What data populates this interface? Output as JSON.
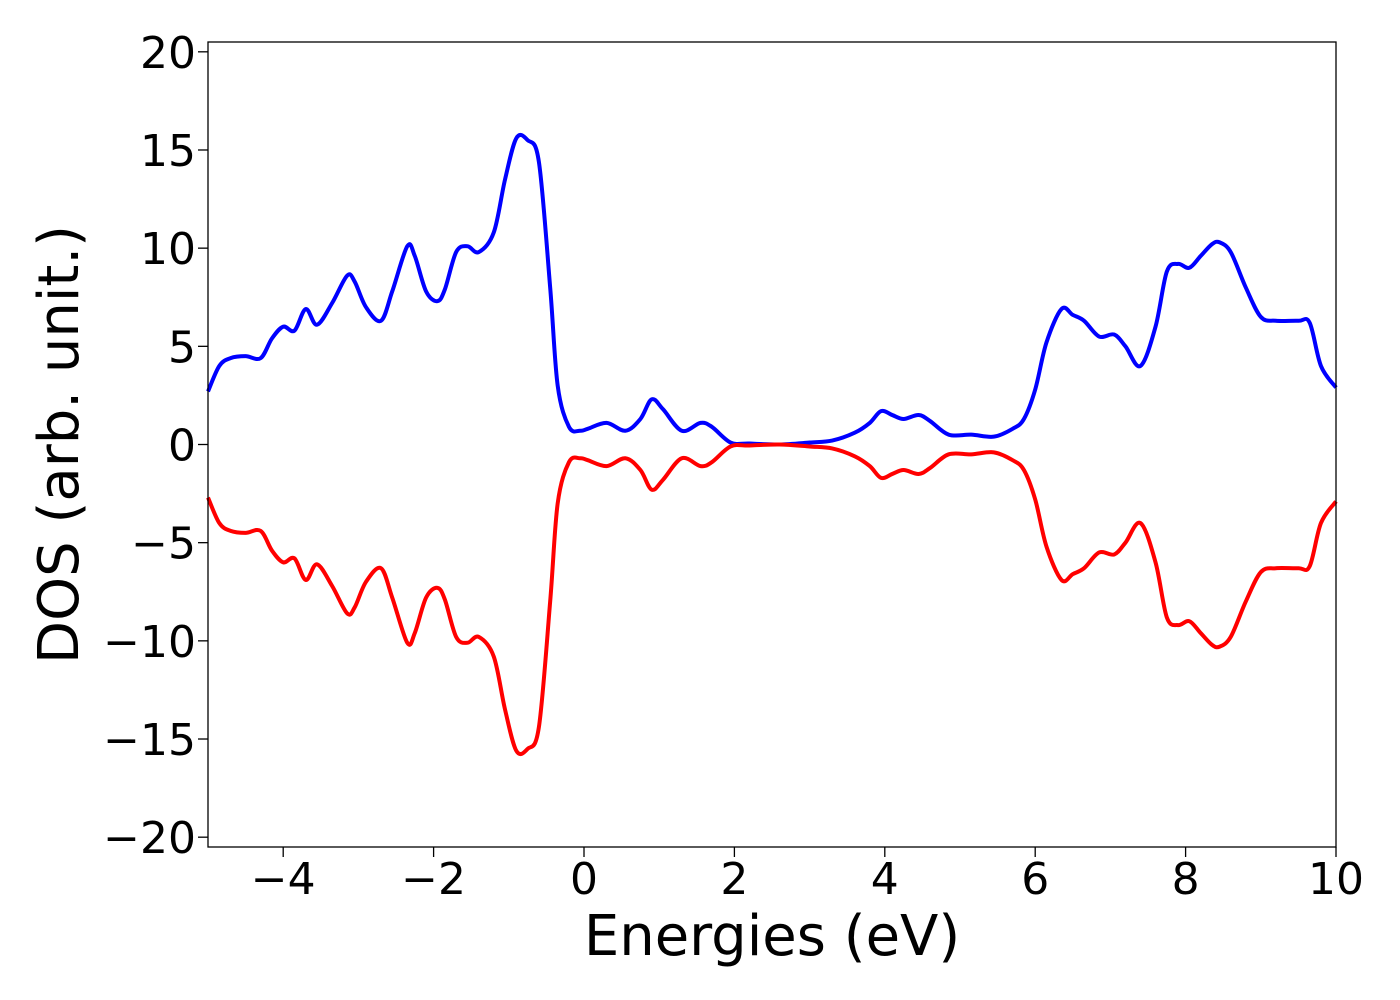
{
  "chart_data": {
    "type": "line",
    "title": "",
    "xlabel": "Energies (eV)",
    "ylabel": "DOS (arb. unit.)",
    "xlim": [
      -5,
      10
    ],
    "ylim": [
      -20.5,
      20.5
    ],
    "grid": false,
    "legend": "none",
    "x_ticks": [
      -4,
      -2,
      0,
      2,
      4,
      6,
      8,
      10
    ],
    "x_tick_labels": [
      "−4",
      "−2",
      "0",
      "2",
      "4",
      "6",
      "8",
      "10"
    ],
    "y_ticks": [
      -20,
      -15,
      -10,
      -5,
      0,
      5,
      10,
      15,
      20
    ],
    "y_tick_labels": [
      "−20",
      "−15",
      "−10",
      "−5",
      "0",
      "5",
      "10",
      "15",
      "20"
    ],
    "series": [
      {
        "color": "#0000ff",
        "x": [
          -5.0,
          -4.85,
          -4.7,
          -4.5,
          -4.3,
          -4.15,
          -4.0,
          -3.85,
          -3.7,
          -3.55,
          -3.35,
          -3.15,
          -3.05,
          -2.9,
          -2.7,
          -2.55,
          -2.35,
          -2.25,
          -2.1,
          -1.95,
          -1.85,
          -1.7,
          -1.55,
          -1.4,
          -1.2,
          -1.05,
          -0.9,
          -0.75,
          -0.6,
          -0.45,
          -0.35,
          -0.2,
          -0.05,
          0.05,
          0.3,
          0.55,
          0.75,
          0.9,
          1.05,
          1.3,
          1.55,
          1.7,
          1.95,
          2.2,
          2.6,
          3.0,
          3.3,
          3.6,
          3.8,
          3.95,
          4.1,
          4.25,
          4.45,
          4.6,
          4.85,
          5.15,
          5.45,
          5.7,
          5.85,
          6.0,
          6.15,
          6.35,
          6.5,
          6.65,
          6.85,
          7.05,
          7.2,
          7.4,
          7.6,
          7.75,
          7.9,
          8.05,
          8.2,
          8.35,
          8.45,
          8.6,
          8.8,
          9.0,
          9.2,
          9.5,
          9.65,
          9.8,
          10.0
        ],
        "y": [
          2.7,
          4.0,
          4.4,
          4.5,
          4.4,
          5.4,
          6.0,
          5.8,
          6.9,
          6.1,
          7.2,
          8.6,
          8.3,
          7.0,
          6.3,
          7.8,
          10.1,
          9.6,
          7.8,
          7.3,
          7.9,
          9.8,
          10.1,
          9.8,
          10.8,
          13.5,
          15.6,
          15.5,
          14.4,
          8.0,
          3.0,
          0.9,
          0.7,
          0.8,
          1.1,
          0.7,
          1.3,
          2.3,
          1.8,
          0.7,
          1.1,
          0.9,
          0.1,
          0.05,
          0.0,
          0.1,
          0.2,
          0.6,
          1.1,
          1.7,
          1.5,
          1.3,
          1.5,
          1.2,
          0.5,
          0.5,
          0.4,
          0.8,
          1.3,
          2.8,
          5.2,
          6.9,
          6.6,
          6.3,
          5.5,
          5.6,
          5.0,
          4.0,
          6.0,
          8.8,
          9.2,
          9.0,
          9.6,
          10.2,
          10.3,
          9.8,
          8.0,
          6.5,
          6.3,
          6.3,
          6.2,
          4.0,
          2.9
        ]
      },
      {
        "color": "#ff0000",
        "x": [
          -5.0,
          -4.85,
          -4.7,
          -4.5,
          -4.3,
          -4.15,
          -4.0,
          -3.85,
          -3.7,
          -3.55,
          -3.35,
          -3.15,
          -3.05,
          -2.9,
          -2.7,
          -2.55,
          -2.35,
          -2.25,
          -2.1,
          -1.95,
          -1.85,
          -1.7,
          -1.55,
          -1.4,
          -1.2,
          -1.05,
          -0.9,
          -0.75,
          -0.6,
          -0.45,
          -0.35,
          -0.2,
          -0.05,
          0.05,
          0.3,
          0.55,
          0.75,
          0.9,
          1.05,
          1.3,
          1.55,
          1.7,
          1.95,
          2.2,
          2.6,
          3.0,
          3.3,
          3.6,
          3.8,
          3.95,
          4.1,
          4.25,
          4.45,
          4.6,
          4.85,
          5.15,
          5.45,
          5.7,
          5.85,
          6.0,
          6.15,
          6.35,
          6.5,
          6.65,
          6.85,
          7.05,
          7.2,
          7.4,
          7.6,
          7.75,
          7.9,
          8.05,
          8.2,
          8.35,
          8.45,
          8.6,
          8.8,
          9.0,
          9.2,
          9.5,
          9.65,
          9.8,
          10.0
        ],
        "y": [
          -2.7,
          -4.0,
          -4.4,
          -4.5,
          -4.4,
          -5.4,
          -6.0,
          -5.8,
          -6.9,
          -6.1,
          -7.2,
          -8.6,
          -8.3,
          -7.0,
          -6.3,
          -7.8,
          -10.1,
          -9.6,
          -7.8,
          -7.3,
          -7.9,
          -9.8,
          -10.1,
          -9.8,
          -10.8,
          -13.5,
          -15.6,
          -15.5,
          -14.4,
          -8.0,
          -3.0,
          -0.9,
          -0.7,
          -0.8,
          -1.1,
          -0.7,
          -1.3,
          -2.3,
          -1.8,
          -0.7,
          -1.1,
          -0.9,
          -0.1,
          -0.05,
          0.0,
          -0.1,
          -0.2,
          -0.6,
          -1.1,
          -1.7,
          -1.5,
          -1.3,
          -1.5,
          -1.2,
          -0.5,
          -0.5,
          -0.4,
          -0.8,
          -1.3,
          -2.8,
          -5.2,
          -6.9,
          -6.6,
          -6.3,
          -5.5,
          -5.6,
          -5.0,
          -4.0,
          -6.0,
          -8.8,
          -9.2,
          -9.0,
          -9.6,
          -10.2,
          -10.3,
          -9.8,
          -8.0,
          -6.5,
          -6.3,
          -6.3,
          -6.2,
          -4.0,
          -2.9
        ]
      }
    ]
  }
}
